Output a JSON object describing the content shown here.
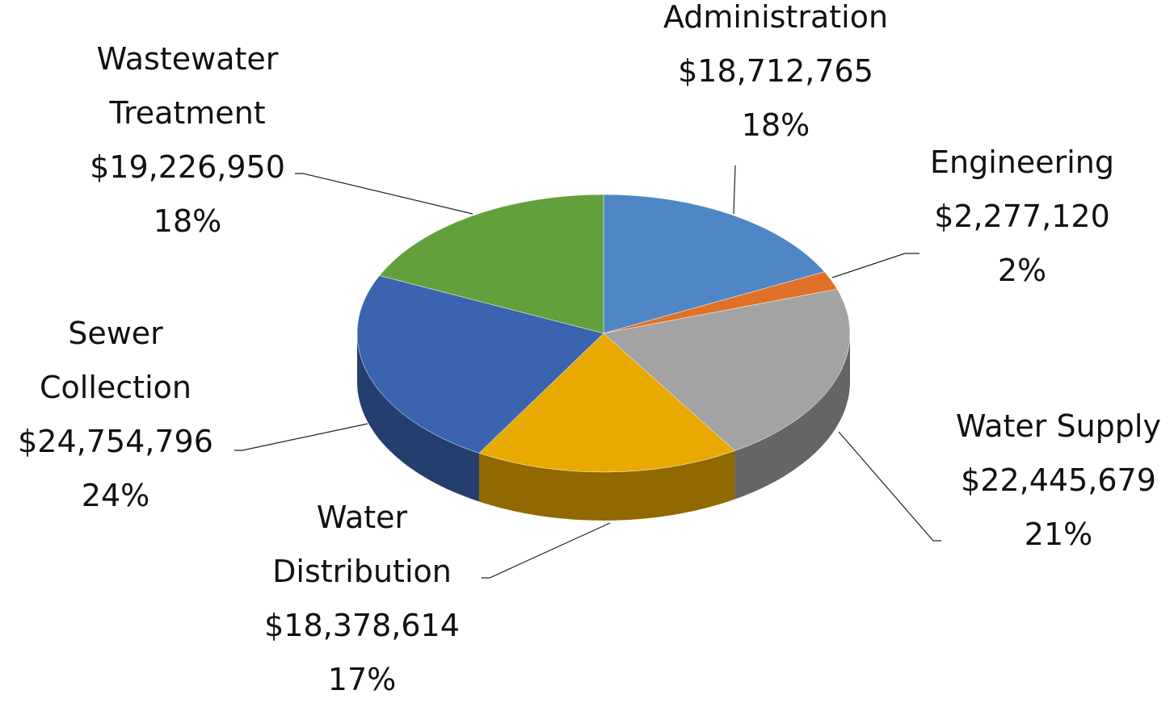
{
  "chart_data": {
    "type": "pie",
    "categories": [
      "Administration",
      "Engineering",
      "Water Supply",
      "Water Distribution",
      "Sewer Collection",
      "Wastewater Treatment"
    ],
    "values": [
      18712765,
      2277120,
      22445679,
      18378614,
      24754796,
      19226950
    ],
    "value_labels": [
      "$18,712,765",
      "$2,277,120",
      "$22,445,679",
      "$18,378,614",
      "$24,754,796",
      "$19,226,950"
    ],
    "percent_labels": [
      "18%",
      "2%",
      "21%",
      "17%",
      "24%",
      "18%"
    ],
    "colors": [
      "#4e86c6",
      "#e07028",
      "#a3a3a3",
      "#e8a900",
      "#3a64b0",
      "#62a03c"
    ]
  }
}
